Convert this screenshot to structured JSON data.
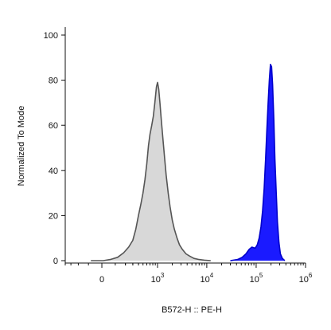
{
  "chart_data": {
    "type": "area",
    "title": "",
    "xlabel": "B572-H :: PE-H",
    "ylabel": "Normalized To Mode",
    "x_scale": "biexponential",
    "xlim": [
      -400,
      1000000
    ],
    "ylim": [
      0,
      100
    ],
    "grid": false,
    "legend": "none",
    "y_ticks": [
      {
        "value": 0,
        "label": "0"
      },
      {
        "value": 20,
        "label": "20"
      },
      {
        "value": 40,
        "label": "40"
      },
      {
        "value": 60,
        "label": "60"
      },
      {
        "value": 80,
        "label": "80"
      },
      {
        "value": 100,
        "label": "100"
      }
    ],
    "x_ticks": [
      {
        "value": 0,
        "base": "0",
        "exp": ""
      },
      {
        "value": 1000,
        "base": "10",
        "exp": "3"
      },
      {
        "value": 10000,
        "base": "10",
        "exp": "4"
      },
      {
        "value": 100000,
        "base": "10",
        "exp": "5"
      },
      {
        "value": 1000000,
        "base": "10",
        "exp": "6"
      }
    ],
    "series": [
      {
        "color": "#d8d8d8",
        "stroke": "#555555",
        "points": [
          [
            -80,
            0
          ],
          [
            10,
            0
          ],
          [
            60,
            0.5
          ],
          [
            120,
            1.5
          ],
          [
            180,
            3.5
          ],
          [
            240,
            6
          ],
          [
            300,
            9
          ],
          [
            350,
            14
          ],
          [
            400,
            20
          ],
          [
            450,
            25
          ],
          [
            500,
            30
          ],
          [
            550,
            36
          ],
          [
            600,
            43
          ],
          [
            650,
            51
          ],
          [
            700,
            56
          ],
          [
            760,
            60
          ],
          [
            820,
            64
          ],
          [
            880,
            70
          ],
          [
            950,
            77
          ],
          [
            1000,
            79
          ],
          [
            1060,
            76
          ],
          [
            1120,
            70
          ],
          [
            1200,
            62
          ],
          [
            1300,
            53
          ],
          [
            1400,
            45
          ],
          [
            1500,
            38
          ],
          [
            1650,
            30
          ],
          [
            1800,
            24
          ],
          [
            2000,
            18
          ],
          [
            2200,
            14
          ],
          [
            2500,
            10
          ],
          [
            2800,
            7
          ],
          [
            3200,
            5
          ],
          [
            3800,
            3
          ],
          [
            4500,
            2
          ],
          [
            5500,
            1
          ],
          [
            7000,
            0.5
          ],
          [
            9000,
            0.2
          ],
          [
            12000,
            0
          ]
        ]
      },
      {
        "color": "#1a1aff",
        "stroke": "#0000cc",
        "points": [
          [
            30000,
            0
          ],
          [
            42000,
            0.5
          ],
          [
            52000,
            1.5
          ],
          [
            62000,
            3
          ],
          [
            72000,
            5
          ],
          [
            82000,
            6
          ],
          [
            95000,
            5.5
          ],
          [
            105000,
            7
          ],
          [
            115000,
            10
          ],
          [
            125000,
            15
          ],
          [
            135000,
            22
          ],
          [
            145000,
            32
          ],
          [
            155000,
            45
          ],
          [
            165000,
            58
          ],
          [
            175000,
            70
          ],
          [
            185000,
            80
          ],
          [
            195000,
            87
          ],
          [
            205000,
            86
          ],
          [
            215000,
            78
          ],
          [
            228000,
            62
          ],
          [
            240000,
            45
          ],
          [
            255000,
            30
          ],
          [
            270000,
            17
          ],
          [
            290000,
            8
          ],
          [
            310000,
            3
          ],
          [
            340000,
            1
          ],
          [
            380000,
            0
          ]
        ]
      }
    ]
  }
}
